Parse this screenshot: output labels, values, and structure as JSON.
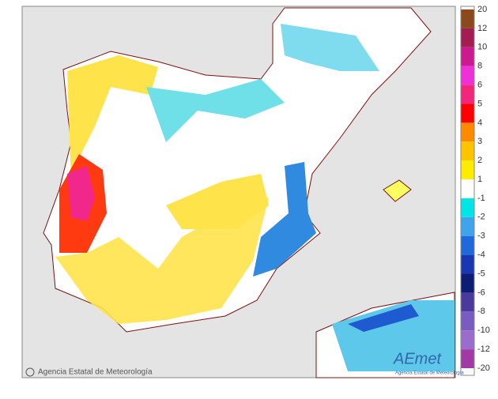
{
  "map": {
    "credit": "Agencia Estatal de Meteorología",
    "logo": {
      "name": "AEmet",
      "subtitle": "Agencia Estatal de Meteorología"
    },
    "legend": {
      "labels": [
        "20",
        "12",
        "10",
        "8",
        "6",
        "5",
        "4",
        "3",
        "2",
        "1",
        "-1",
        "-2",
        "-3",
        "-4",
        "-5",
        "-6",
        "-8",
        "-10",
        "-12",
        "-20"
      ],
      "colors": [
        "#8b4a1c",
        "#a31c52",
        "#cc1990",
        "#ee30d8",
        "#f2277c",
        "#ff0000",
        "#ff8a00",
        "#ffc400",
        "#ffec00",
        "#ffffff",
        "#00e6e6",
        "#3fa4ea",
        "#1e6adc",
        "#1738b0",
        "#0f1c74",
        "#4a3a9c",
        "#7a5bbf",
        "#9a6ccc",
        "#a23aa6"
      ]
    }
  }
}
